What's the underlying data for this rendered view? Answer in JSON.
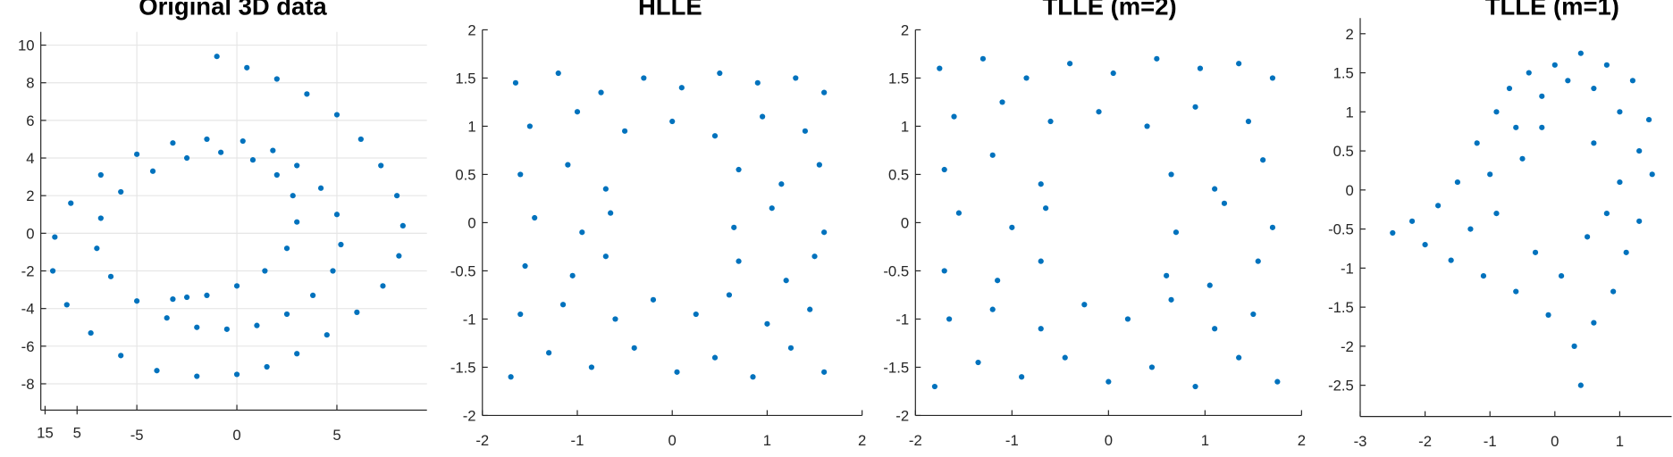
{
  "chart_data": [
    {
      "type": "scatter",
      "title": "Original 3D data",
      "grid": true,
      "color": "#0072bd",
      "xlim": [
        -9.8,
        9.5
      ],
      "ylim": [
        -9.4,
        10.7
      ],
      "xticks": [
        -5,
        0,
        5
      ],
      "yticks": [
        -8,
        -6,
        -4,
        -2,
        0,
        2,
        4,
        6,
        8,
        10
      ],
      "zticks": [
        15,
        5
      ],
      "series": [
        {
          "color": "#0072bd",
          "x": [
            -1,
            0.5,
            2,
            3.5,
            5,
            6.2,
            7.2,
            8,
            8.3,
            8.1,
            7.3,
            6,
            4.5,
            3,
            1.5,
            0,
            -2,
            -4,
            -5.8,
            -7.3,
            -8.5,
            -9.2,
            -9.1,
            -8.3,
            -6.8,
            -5,
            -3.2,
            -1.5,
            0.3,
            1.8,
            3,
            4.2,
            5,
            5.2,
            4.8,
            3.8,
            2.5,
            1,
            -0.5,
            -2,
            -3.5,
            -5,
            -6.3,
            -7,
            -6.8,
            -5.8,
            -4.2,
            -2.5,
            -0.8,
            0.8,
            2,
            2.8,
            3,
            2.5,
            1.4,
            0,
            -1.5,
            -2.5,
            -3.2
          ],
          "y": [
            9.4,
            8.8,
            8.2,
            7.4,
            6.3,
            5,
            3.6,
            2,
            0.4,
            -1.2,
            -2.8,
            -4.2,
            -5.4,
            -6.4,
            -7.1,
            -7.5,
            -7.6,
            -7.3,
            -6.5,
            -5.3,
            -3.8,
            -2,
            -0.2,
            1.6,
            3.1,
            4.2,
            4.8,
            5,
            4.9,
            4.4,
            3.6,
            2.4,
            1,
            -0.6,
            -2,
            -3.3,
            -4.3,
            -4.9,
            -5.1,
            -5,
            -4.5,
            -3.6,
            -2.3,
            -0.8,
            0.8,
            2.2,
            3.3,
            4,
            4.3,
            3.9,
            3.1,
            2,
            0.6,
            -0.8,
            -2,
            -2.8,
            -3.3,
            -3.4,
            -3.5
          ]
        }
      ]
    },
    {
      "type": "scatter",
      "title": "HLLE",
      "color": "#0072bd",
      "xlim": [
        -2,
        2
      ],
      "ylim": [
        -2,
        2
      ],
      "xticks": [
        -2,
        -1,
        0,
        1,
        2
      ],
      "yticks": [
        -2,
        -1.5,
        -1,
        -0.5,
        0,
        0.5,
        1,
        1.5,
        2
      ],
      "series": [
        {
          "color": "#0072bd",
          "x": [
            -1.65,
            -1.2,
            -0.75,
            -0.3,
            0.1,
            0.5,
            0.9,
            1.3,
            1.6,
            -1.5,
            -1.0,
            -0.5,
            0.0,
            0.45,
            0.95,
            1.4,
            -1.6,
            -1.1,
            -0.7,
            0.7,
            1.15,
            1.55,
            -1.45,
            -0.95,
            -0.65,
            0.65,
            1.05,
            1.6,
            -1.55,
            -1.05,
            -0.7,
            0.7,
            1.2,
            1.5,
            -1.6,
            -1.15,
            -0.6,
            -0.2,
            0.25,
            0.6,
            1.0,
            1.45,
            -1.7,
            -1.3,
            -0.85,
            -0.4,
            0.05,
            0.45,
            0.85,
            1.25,
            1.6
          ],
          "y": [
            1.45,
            1.55,
            1.35,
            1.5,
            1.4,
            1.55,
            1.45,
            1.5,
            1.35,
            1.0,
            1.15,
            0.95,
            1.05,
            0.9,
            1.1,
            0.95,
            0.5,
            0.6,
            0.35,
            0.55,
            0.4,
            0.6,
            0.05,
            -0.1,
            0.1,
            -0.05,
            0.15,
            -0.1,
            -0.45,
            -0.55,
            -0.35,
            -0.4,
            -0.6,
            -0.35,
            -0.95,
            -0.85,
            -1.0,
            -0.8,
            -0.95,
            -0.75,
            -1.05,
            -0.9,
            -1.6,
            -1.35,
            -1.5,
            -1.3,
            -1.55,
            -1.4,
            -1.6,
            -1.3,
            -1.55
          ]
        }
      ]
    },
    {
      "type": "scatter",
      "title": "TLLE (m=2)",
      "color": "#0072bd",
      "xlim": [
        -2,
        2
      ],
      "ylim": [
        -2,
        2
      ],
      "xticks": [
        -2,
        -1,
        0,
        1,
        2
      ],
      "yticks": [
        -2,
        -1.5,
        -1,
        -0.5,
        0,
        0.5,
        1,
        1.5,
        2
      ],
      "series": [
        {
          "color": "#0072bd",
          "x": [
            -1.75,
            -1.3,
            -0.85,
            -0.4,
            0.05,
            0.5,
            0.95,
            1.35,
            1.7,
            -1.6,
            -1.1,
            -0.6,
            -0.1,
            0.4,
            0.9,
            1.45,
            -1.7,
            -1.2,
            -0.7,
            0.65,
            1.1,
            1.6,
            -1.55,
            -1.0,
            -0.65,
            0.7,
            1.2,
            1.7,
            -1.7,
            -1.15,
            -0.7,
            0.6,
            1.05,
            1.55,
            -1.65,
            -1.2,
            -0.7,
            -0.25,
            0.2,
            0.65,
            1.1,
            1.5,
            -1.8,
            -1.35,
            -0.9,
            -0.45,
            0.0,
            0.45,
            0.9,
            1.35,
            1.75
          ],
          "y": [
            1.6,
            1.7,
            1.5,
            1.65,
            1.55,
            1.7,
            1.6,
            1.65,
            1.5,
            1.1,
            1.25,
            1.05,
            1.15,
            1.0,
            1.2,
            1.05,
            0.55,
            0.7,
            0.4,
            0.5,
            0.35,
            0.65,
            0.1,
            -0.05,
            0.15,
            -0.1,
            0.2,
            -0.05,
            -0.5,
            -0.6,
            -0.4,
            -0.55,
            -0.65,
            -0.4,
            -1.0,
            -0.9,
            -1.1,
            -0.85,
            -1.0,
            -0.8,
            -1.1,
            -0.95,
            -1.7,
            -1.45,
            -1.6,
            -1.4,
            -1.65,
            -1.5,
            -1.7,
            -1.4,
            -1.65
          ]
        }
      ]
    },
    {
      "type": "scatter",
      "title": "TLLE (m=1)",
      "color": "#0072bd",
      "xlim": [
        -3,
        1.8
      ],
      "ylim": [
        -2.9,
        2.2
      ],
      "xticks": [
        -3,
        -2,
        -1,
        0,
        1
      ],
      "yticks": [
        -2.5,
        -2,
        -1.5,
        -1,
        -0.5,
        0,
        0.5,
        1,
        1.5,
        2
      ],
      "series": [
        {
          "color": "#0072bd",
          "x": [
            -2.5,
            -2.2,
            -2.0,
            -1.8,
            -1.6,
            -1.5,
            -1.3,
            -1.2,
            -1.1,
            -0.9,
            -0.9,
            -0.7,
            -0.6,
            -0.5,
            -0.4,
            -0.3,
            -0.2,
            -0.1,
            0.0,
            0.1,
            0.2,
            0.3,
            0.4,
            0.4,
            0.5,
            0.6,
            0.6,
            0.8,
            0.8,
            0.9,
            1.0,
            1.0,
            1.1,
            1.2,
            1.3,
            1.3,
            1.45,
            1.5,
            -1.0,
            -0.6,
            -0.2,
            0.6
          ],
          "y": [
            -0.55,
            -0.4,
            -0.7,
            -0.2,
            -0.9,
            0.1,
            -0.5,
            0.6,
            -1.1,
            1.0,
            -0.3,
            1.3,
            -1.3,
            0.4,
            1.5,
            -0.8,
            1.2,
            -1.6,
            1.6,
            -1.1,
            1.4,
            -2.0,
            1.75,
            -2.5,
            -0.6,
            1.3,
            -1.7,
            1.6,
            -0.3,
            -1.3,
            1.0,
            0.1,
            -0.8,
            1.4,
            0.5,
            -0.4,
            0.9,
            0.2,
            0.2,
            0.8,
            0.8,
            0.6
          ]
        }
      ]
    }
  ]
}
